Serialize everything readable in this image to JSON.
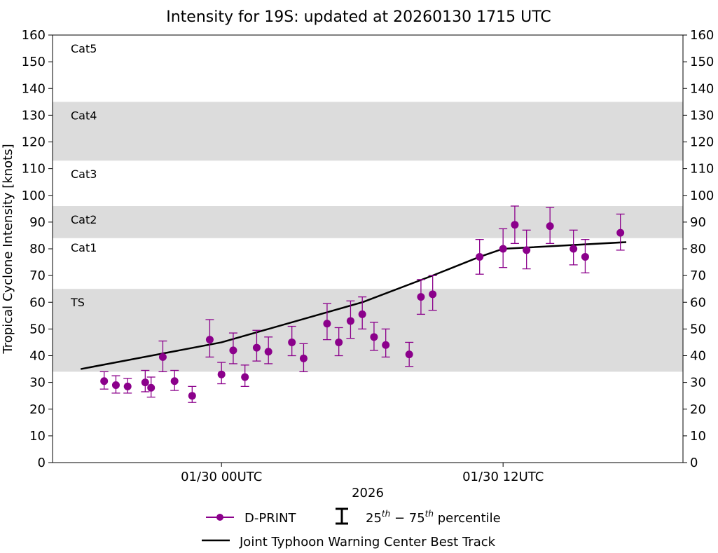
{
  "chart_data": {
    "type": "scatter",
    "title": "Intensity for 19S: updated at 20260130 1715 UTC",
    "ylabel": "Tropical Cyclone Intensity [knots]",
    "xlabel": "2026",
    "ylim": [
      0,
      160
    ],
    "yticks": [
      0,
      10,
      20,
      30,
      40,
      50,
      60,
      70,
      80,
      90,
      100,
      110,
      120,
      130,
      140,
      150,
      160
    ],
    "xlim": [
      "01/29 16:48",
      "01/30 19:40"
    ],
    "xticks": [
      {
        "time": "01/30 00:00",
        "label": "01/30 00UTC"
      },
      {
        "time": "01/30 12:00",
        "label": "01/30 12UTC"
      }
    ],
    "grid": false,
    "categories": [
      {
        "label": "TS",
        "min": 34,
        "max": 65,
        "shaded": true
      },
      {
        "label": "Cat1",
        "min": 65,
        "max": 84,
        "shaded": false
      },
      {
        "label": "Cat2",
        "min": 84,
        "max": 96,
        "shaded": true
      },
      {
        "label": "Cat3",
        "min": 96,
        "max": 113,
        "shaded": false
      },
      {
        "label": "Cat4",
        "min": 113,
        "max": 135,
        "shaded": true
      },
      {
        "label": "Cat5",
        "min": 135,
        "max": 160,
        "shaded": false
      }
    ],
    "series": [
      {
        "name": "D-PRINT",
        "color": "#8b008b",
        "points": [
          {
            "time": "01/29 19:00",
            "value": 30.5,
            "p25": 27.5,
            "p75": 34
          },
          {
            "time": "01/29 19:30",
            "value": 29,
            "p25": 26,
            "p75": 32.5
          },
          {
            "time": "01/29 20:00",
            "value": 28.5,
            "p25": 26,
            "p75": 31.5
          },
          {
            "time": "01/29 20:45",
            "value": 30,
            "p25": 26.5,
            "p75": 34.5
          },
          {
            "time": "01/29 21:00",
            "value": 28,
            "p25": 24.5,
            "p75": 32
          },
          {
            "time": "01/29 21:30",
            "value": 39.5,
            "p25": 34,
            "p75": 45.5
          },
          {
            "time": "01/29 22:00",
            "value": 30.5,
            "p25": 27,
            "p75": 34.5
          },
          {
            "time": "01/29 22:45",
            "value": 25,
            "p25": 22.5,
            "p75": 28.5
          },
          {
            "time": "01/29 23:30",
            "value": 46,
            "p25": 39.5,
            "p75": 53.5
          },
          {
            "time": "01/30 00:00",
            "value": 33,
            "p25": 29.5,
            "p75": 37.5
          },
          {
            "time": "01/30 00:30",
            "value": 42,
            "p25": 37,
            "p75": 48.5
          },
          {
            "time": "01/30 01:00",
            "value": 32,
            "p25": 28.5,
            "p75": 36.5
          },
          {
            "time": "01/30 01:30",
            "value": 43,
            "p25": 38,
            "p75": 49.5
          },
          {
            "time": "01/30 02:00",
            "value": 41.5,
            "p25": 37,
            "p75": 47
          },
          {
            "time": "01/30 03:00",
            "value": 45,
            "p25": 40,
            "p75": 51
          },
          {
            "time": "01/30 03:30",
            "value": 39,
            "p25": 34,
            "p75": 44.5
          },
          {
            "time": "01/30 04:30",
            "value": 52,
            "p25": 46,
            "p75": 59.5
          },
          {
            "time": "01/30 05:00",
            "value": 45,
            "p25": 40,
            "p75": 50.5
          },
          {
            "time": "01/30 05:30",
            "value": 53,
            "p25": 46.5,
            "p75": 60.5
          },
          {
            "time": "01/30 06:00",
            "value": 55.5,
            "p25": 50,
            "p75": 62
          },
          {
            "time": "01/30 06:30",
            "value": 47,
            "p25": 42,
            "p75": 52.5
          },
          {
            "time": "01/30 07:00",
            "value": 44,
            "p25": 39.5,
            "p75": 50
          },
          {
            "time": "01/30 08:00",
            "value": 40.5,
            "p25": 36,
            "p75": 45
          },
          {
            "time": "01/30 08:30",
            "value": 62,
            "p25": 55.5,
            "p75": 68.5
          },
          {
            "time": "01/30 09:00",
            "value": 63,
            "p25": 57,
            "p75": 70
          },
          {
            "time": "01/30 11:00",
            "value": 77,
            "p25": 70.5,
            "p75": 83.5
          },
          {
            "time": "01/30 12:00",
            "value": 80,
            "p25": 73,
            "p75": 87.5
          },
          {
            "time": "01/30 12:30",
            "value": 89,
            "p25": 82,
            "p75": 96
          },
          {
            "time": "01/30 13:00",
            "value": 79.5,
            "p25": 72.5,
            "p75": 87
          },
          {
            "time": "01/30 14:00",
            "value": 88.5,
            "p25": 82,
            "p75": 95.5
          },
          {
            "time": "01/30 15:00",
            "value": 80,
            "p25": 74,
            "p75": 87
          },
          {
            "time": "01/30 15:30",
            "value": 77,
            "p25": 71,
            "p75": 83.5
          },
          {
            "time": "01/30 17:00",
            "value": 86,
            "p25": 79.5,
            "p75": 93
          }
        ]
      },
      {
        "name": "Joint Typhoon Warning Center Best Track",
        "color": "#000000",
        "points": [
          {
            "time": "01/29 18:00",
            "value": 35
          },
          {
            "time": "01/30 00:00",
            "value": 45
          },
          {
            "time": "01/30 06:00",
            "value": 60
          },
          {
            "time": "01/30 09:00",
            "value": 70
          },
          {
            "time": "01/30 11:00",
            "value": 77
          },
          {
            "time": "01/30 12:00",
            "value": 80
          },
          {
            "time": "01/30 17:15",
            "value": 82.5
          }
        ]
      }
    ],
    "legend": {
      "position": "bottom",
      "dprint": "D-PRINT",
      "percentile_base1": "25",
      "percentile_sup1": "th",
      "percentile_dash": " − 75",
      "percentile_sup2": "th",
      "percentile_tail": " percentile",
      "best_track": "Joint Typhoon Warning Center Best Track"
    },
    "band_color": "#dcdcdc"
  }
}
